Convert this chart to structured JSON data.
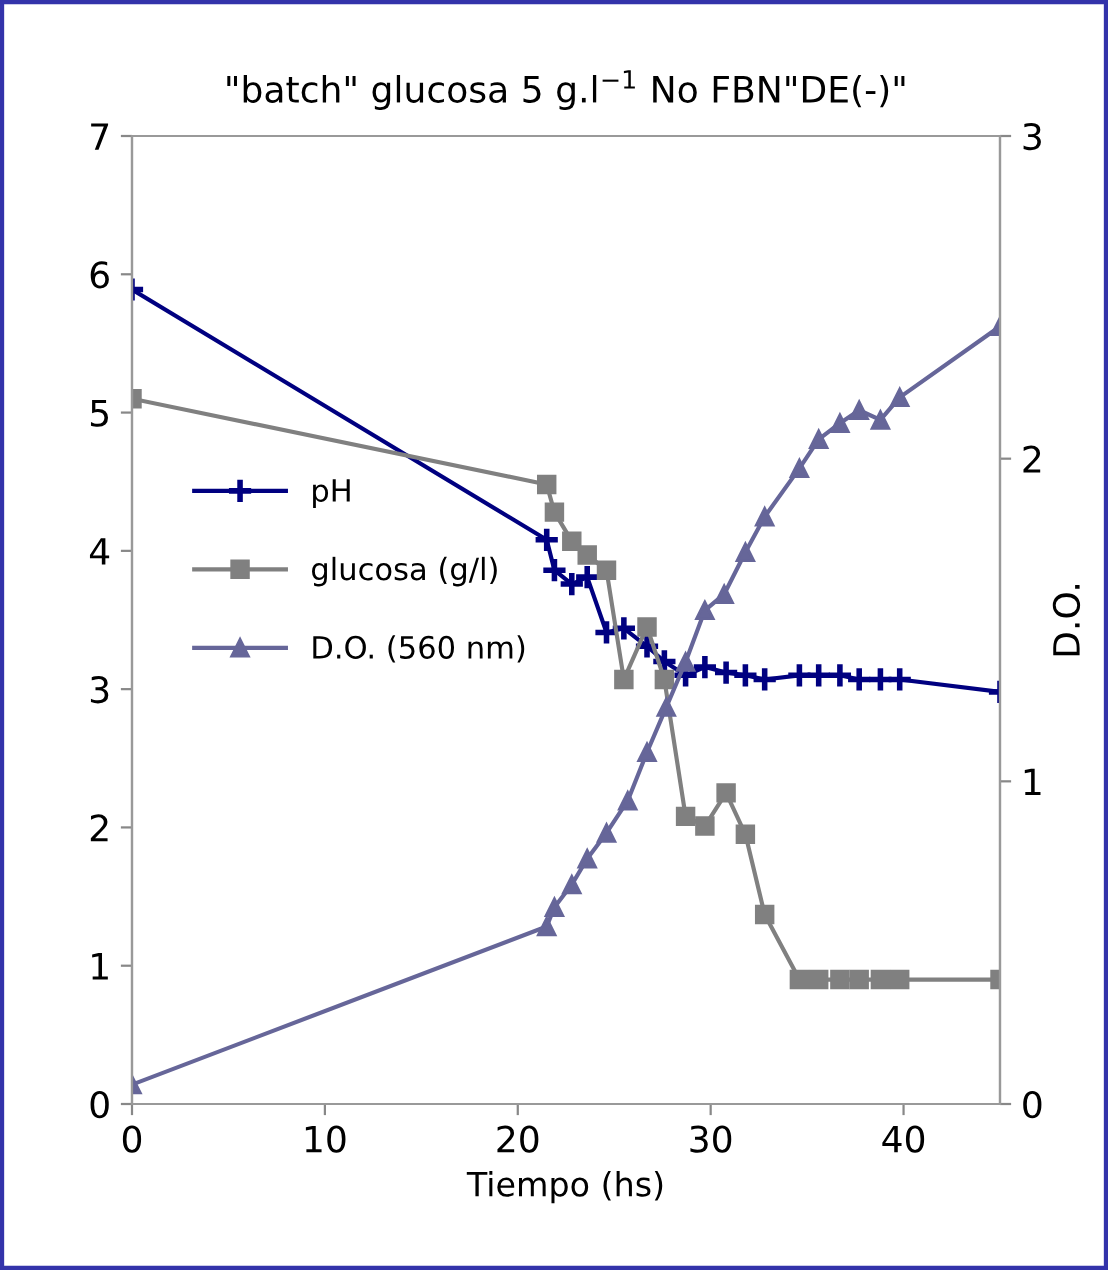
{
  "chart_data": {
    "type": "line",
    "title": "\"batch\" glucosa 5 g.l$^{−1}$ No FBN\"DE(-)\"",
    "xlabel": "Tiempo (hs)",
    "y2label": "D.O.",
    "xlim": [
      0,
      45
    ],
    "xticks": [
      0,
      10,
      20,
      30,
      40
    ],
    "ylim": [
      0,
      7
    ],
    "yticks": [
      0,
      1,
      2,
      3,
      4,
      5,
      6,
      7
    ],
    "y2lim": [
      0,
      3
    ],
    "y2ticks": [
      0,
      1,
      2,
      3
    ],
    "grid": false,
    "legend": "left",
    "series": [
      {
        "name": "pH",
        "color": "#000080",
        "marker": "cross",
        "x": [
          0,
          21.5,
          21.9,
          22.8,
          23.6,
          24.6,
          25.5,
          26.7,
          27.6,
          28.7,
          29.7,
          30.8,
          31.8,
          32.8,
          34.6,
          35.6,
          36.7,
          37.7,
          38.8,
          39.8,
          45
        ],
        "values": [
          5.89,
          4.08,
          3.86,
          3.76,
          3.81,
          3.41,
          3.44,
          3.31,
          3.2,
          3.1,
          3.16,
          3.12,
          3.1,
          3.07,
          3.1,
          3.1,
          3.1,
          3.07,
          3.07,
          3.07,
          2.98
        ]
      },
      {
        "name": "glucosa (g/l)",
        "color": "#808080",
        "marker": "square",
        "x": [
          0,
          21.5,
          21.9,
          22.8,
          23.6,
          24.6,
          25.5,
          26.7,
          27.6,
          28.7,
          29.7,
          30.8,
          31.8,
          32.8,
          34.6,
          35.6,
          36.7,
          37.7,
          38.8,
          39.8,
          45
        ],
        "values": [
          5.1,
          4.48,
          4.28,
          4.07,
          3.97,
          3.86,
          3.07,
          3.45,
          3.07,
          2.08,
          2.01,
          2.25,
          1.95,
          1.37,
          0.9,
          0.9,
          0.9,
          0.9,
          0.9,
          0.9,
          0.9
        ]
      },
      {
        "name": "D.O. (560 nm)",
        "color": "#666699",
        "marker": "triangle",
        "axis": "y2",
        "x": [
          0,
          21.5,
          21.9,
          22.8,
          23.6,
          24.6,
          25.7,
          26.7,
          27.7,
          28.7,
          29.7,
          30.7,
          31.8,
          32.8,
          34.6,
          35.6,
          36.7,
          37.7,
          38.8,
          39.8,
          45
        ],
        "values": [
          0.06,
          0.55,
          0.61,
          0.68,
          0.76,
          0.84,
          0.94,
          1.09,
          1.23,
          1.37,
          1.53,
          1.58,
          1.71,
          1.82,
          1.97,
          2.06,
          2.11,
          2.15,
          2.12,
          2.19,
          2.41
        ]
      }
    ]
  }
}
